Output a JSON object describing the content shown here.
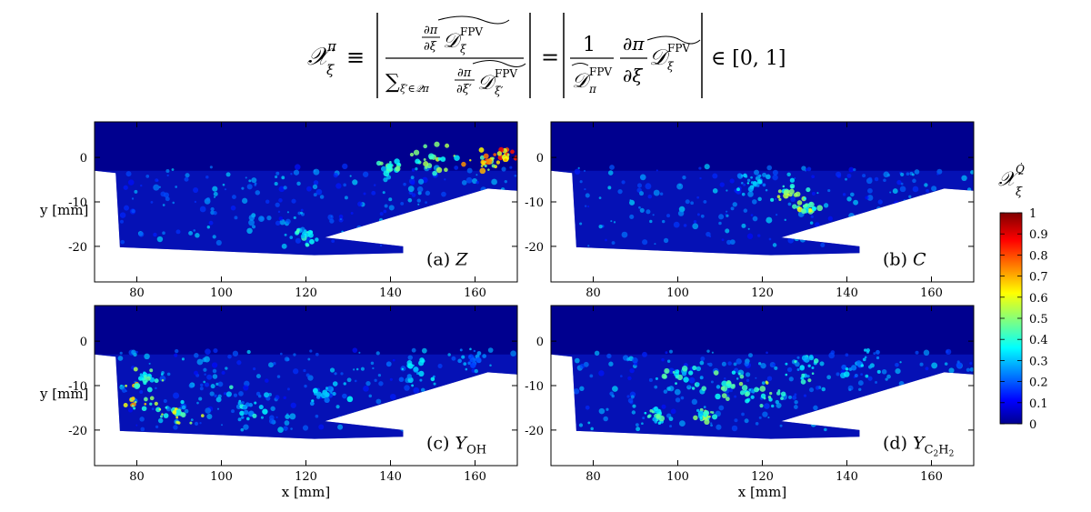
{
  "equation": {
    "lhs": "𝒳",
    "lhs_sup": "π",
    "lhs_sub": "ξ",
    "equiv": "≡",
    "num_frac_top": "∂π",
    "num_frac_bot": "∂ξ",
    "D": "𝒟",
    "D_sup": "FPV",
    "D_sub": "ξ",
    "sum": "∑",
    "sum_sub": "ξ′∈𝒬π",
    "den_frac_top": "∂π",
    "den_frac_bot": "∂ξ′",
    "den_D_sub": "ξ′",
    "equals": "=",
    "one": "1",
    "Dpi_sub": "π",
    "in_range": "∈ [0, 1]"
  },
  "chart_data": [
    {
      "type": "heatmap",
      "label": "(a) Z",
      "label_prefix": "(a)",
      "label_var": "Z",
      "xlabel": "",
      "ylabel": "y [mm]",
      "xlim": [
        70,
        170
      ],
      "ylim": [
        -28,
        8
      ],
      "xticks": [
        80,
        100,
        120,
        140,
        160
      ],
      "yticks": [
        0,
        -10,
        -20
      ],
      "hotspots": [
        {
          "x": 120,
          "y": -17.5,
          "v": 0.45,
          "r": 4
        },
        {
          "x": 150,
          "y": 0,
          "v": 0.55,
          "r": 6
        },
        {
          "x": 162,
          "y": -1,
          "v": 0.8,
          "r": 5
        },
        {
          "x": 167,
          "y": 0,
          "v": 0.9,
          "r": 3
        },
        {
          "x": 140,
          "y": -2,
          "v": 0.5,
          "r": 3
        }
      ]
    },
    {
      "type": "heatmap",
      "label": "(b) C",
      "label_prefix": "(b)",
      "label_var": "C",
      "xlabel": "",
      "ylabel": "",
      "xlim": [
        70,
        170
      ],
      "ylim": [
        -28,
        8
      ],
      "xticks": [
        80,
        100,
        120,
        140,
        160
      ],
      "yticks": [
        0,
        -10,
        -20
      ],
      "hotspots": [
        {
          "x": 126,
          "y": -8,
          "v": 0.55,
          "r": 5
        },
        {
          "x": 130,
          "y": -11,
          "v": 0.6,
          "r": 4
        },
        {
          "x": 118,
          "y": -6,
          "v": 0.35,
          "r": 5
        }
      ]
    },
    {
      "type": "heatmap",
      "label": "(c) Y_OH",
      "label_prefix": "(c)",
      "label_var": "Y",
      "label_sub": "OH",
      "xlabel": "x [mm]",
      "ylabel": "y [mm]",
      "xlim": [
        70,
        170
      ],
      "ylim": [
        -28,
        8
      ],
      "xticks": [
        80,
        100,
        120,
        140,
        160
      ],
      "yticks": [
        0,
        -10,
        -20
      ],
      "hotspots": [
        {
          "x": 79,
          "y": -13,
          "v": 0.7,
          "r": 6
        },
        {
          "x": 82,
          "y": -8,
          "v": 0.55,
          "r": 5
        },
        {
          "x": 90,
          "y": -16,
          "v": 0.6,
          "r": 6
        },
        {
          "x": 105,
          "y": -14,
          "v": 0.4,
          "r": 7
        },
        {
          "x": 125,
          "y": -12,
          "v": 0.35,
          "r": 6
        },
        {
          "x": 145,
          "y": -6,
          "v": 0.35,
          "r": 7
        },
        {
          "x": 160,
          "y": -4,
          "v": 0.3,
          "r": 5
        }
      ]
    },
    {
      "type": "heatmap",
      "label": "(d) Y_C2H2",
      "label_prefix": "(d)",
      "label_var": "Y",
      "label_sub": "C",
      "label_sub2": "2",
      "label_sub3": "H",
      "label_sub4": "2",
      "xlabel": "x [mm]",
      "ylabel": "",
      "xlim": [
        70,
        170
      ],
      "ylim": [
        -28,
        8
      ],
      "xticks": [
        80,
        100,
        120,
        140,
        160
      ],
      "yticks": [
        0,
        -10,
        -20
      ],
      "hotspots": [
        {
          "x": 100,
          "y": -8,
          "v": 0.45,
          "r": 6
        },
        {
          "x": 112,
          "y": -10,
          "v": 0.5,
          "r": 6
        },
        {
          "x": 120,
          "y": -12,
          "v": 0.55,
          "r": 5
        },
        {
          "x": 130,
          "y": -6,
          "v": 0.45,
          "r": 6
        },
        {
          "x": 106,
          "y": -17,
          "v": 0.55,
          "r": 3
        },
        {
          "x": 143,
          "y": -5,
          "v": 0.35,
          "r": 6
        },
        {
          "x": 95,
          "y": -17,
          "v": 0.45,
          "r": 3
        }
      ]
    }
  ],
  "colorbar": {
    "title": "𝒳",
    "title_sub": "ξ",
    "title_sup": "Q̇",
    "ticks": [
      "1",
      "0.9",
      "0.8",
      "0.7",
      "0.6",
      "0.5",
      "0.4",
      "0.3",
      "0.2",
      "0.1",
      "0"
    ],
    "tick_values": [
      1,
      0.9,
      0.8,
      0.7,
      0.6,
      0.5,
      0.4,
      0.3,
      0.2,
      0.1,
      0
    ]
  },
  "colors": {
    "background_field": "#00008f",
    "blue": "#0000ff",
    "cyan": "#00ffff",
    "yellow": "#ffff00",
    "red": "#ff0000",
    "dark_red": "#800000"
  }
}
